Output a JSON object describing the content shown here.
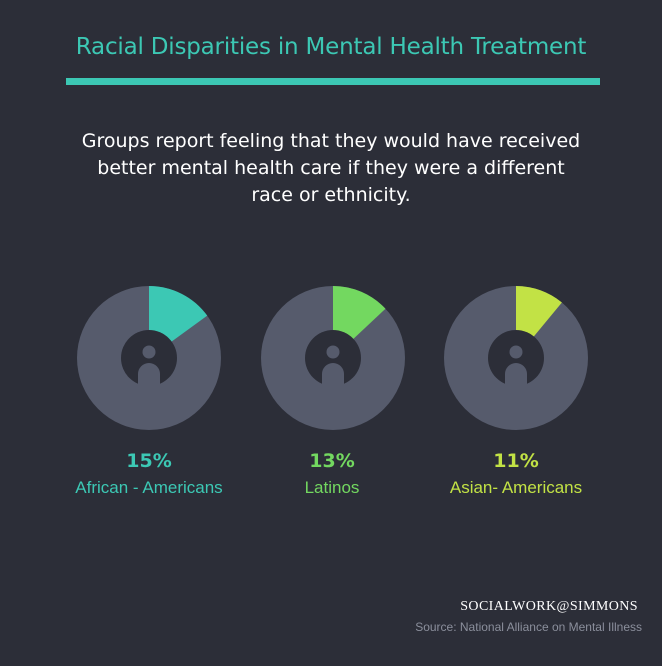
{
  "header": {
    "title": "Racial Disparities in Mental Health Treatment",
    "subtitle": "Groups report feeling that they would have received better mental health care if they were a different race or ethnicity."
  },
  "chart_data": {
    "type": "pie",
    "variant": "donut",
    "unit": "%",
    "series": [
      {
        "name": "African - Americans",
        "value": 15,
        "label": "15%",
        "color": "#3cc8b4"
      },
      {
        "name": "Latinos",
        "value": 13,
        "label": "13%",
        "color": "#73d860"
      },
      {
        "name": "Asian- Americans",
        "value": 11,
        "label": "11%",
        "color": "#c2e245"
      }
    ]
  },
  "footer": {
    "brand": "SOCIALWORK@SIMMONS",
    "source": "Source: National Alliance on Mental Illness"
  },
  "colors": {
    "background": "#2c2e38",
    "ring": "#565b6c",
    "accent": "#3cc8b4"
  }
}
